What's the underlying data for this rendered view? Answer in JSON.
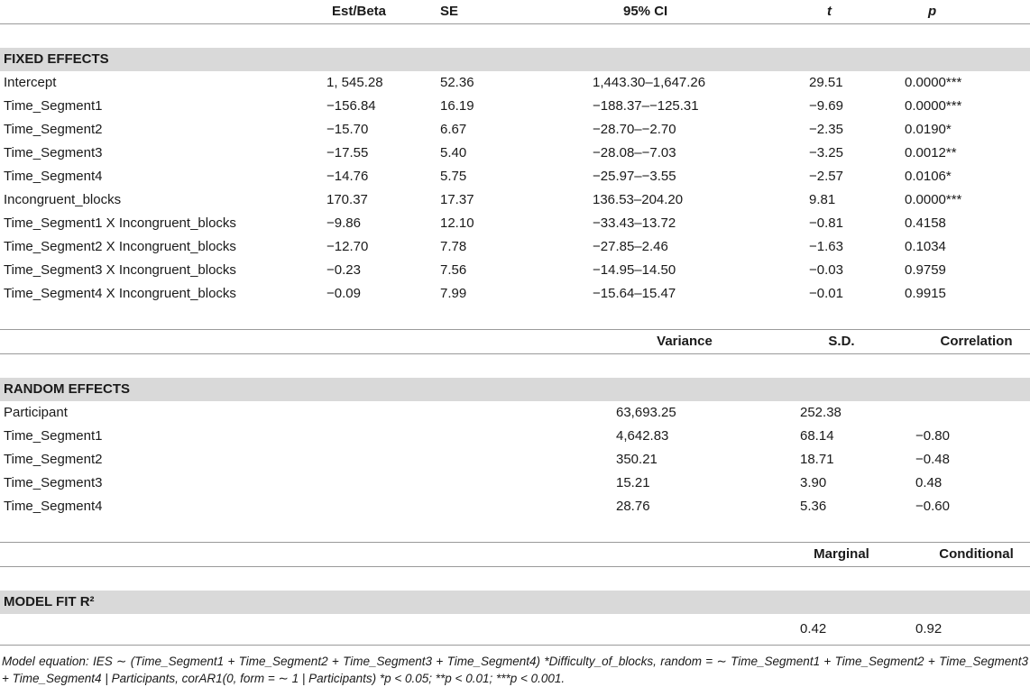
{
  "header": {
    "col0": "",
    "est": "Est/Beta",
    "se": "SE",
    "ci": "95% CI",
    "t": "t",
    "p": "p"
  },
  "fixed_title": "FIXED EFFECTS",
  "fixed": [
    {
      "term": "Intercept",
      "est": "1, 545.28",
      "se": "52.36",
      "ci": "1,443.30–1,647.26",
      "t": "29.51",
      "p": "0.0000***"
    },
    {
      "term": "Time_Segment1",
      "est": "−156.84",
      "se": "16.19",
      "ci": "−188.37–−125.31",
      "t": "−9.69",
      "p": "0.0000***"
    },
    {
      "term": "Time_Segment2",
      "est": "−15.70",
      "se": "6.67",
      "ci": "−28.70–−2.70",
      "t": "−2.35",
      "p": "0.0190*"
    },
    {
      "term": "Time_Segment3",
      "est": "−17.55",
      "se": "5.40",
      "ci": "−28.08–−7.03",
      "t": "−3.25",
      "p": "0.0012**"
    },
    {
      "term": "Time_Segment4",
      "est": "−14.76",
      "se": "5.75",
      "ci": "−25.97–−3.55",
      "t": "−2.57",
      "p": "0.0106*"
    },
    {
      "term": "Incongruent_blocks",
      "est": "170.37",
      "se": "17.37",
      "ci": "136.53–204.20",
      "t": "9.81",
      "p": "0.0000***"
    },
    {
      "term": "Time_Segment1 X Incongruent_blocks",
      "est": "−9.86",
      "se": "12.10",
      "ci": "−33.43–13.72",
      "t": "−0.81",
      "p": "0.4158"
    },
    {
      "term": "Time_Segment2 X Incongruent_blocks",
      "est": "−12.70",
      "se": "7.78",
      "ci": "−27.85–2.46",
      "t": "−1.63",
      "p": "0.1034"
    },
    {
      "term": "Time_Segment3 X Incongruent_blocks",
      "est": "−0.23",
      "se": "7.56",
      "ci": "−14.95–14.50",
      "t": "−0.03",
      "p": "0.9759"
    },
    {
      "term": "Time_Segment4 X Incongruent_blocks",
      "est": "−0.09",
      "se": "7.99",
      "ci": "−15.64–15.47",
      "t": "−0.01",
      "p": "0.9915"
    }
  ],
  "random_header": {
    "variance": "Variance",
    "sd": "S.D.",
    "corr": "Correlation"
  },
  "random_title": "RANDOM EFFECTS",
  "random": [
    {
      "term": "Participant",
      "variance": "63,693.25",
      "sd": "252.38",
      "corr": ""
    },
    {
      "term": "Time_Segment1",
      "variance": "4,642.83",
      "sd": "68.14",
      "corr": "−0.80"
    },
    {
      "term": "Time_Segment2",
      "variance": "350.21",
      "sd": "18.71",
      "corr": "−0.48"
    },
    {
      "term": "Time_Segment3",
      "variance": "15.21",
      "sd": "3.90",
      "corr": "0.48"
    },
    {
      "term": "Time_Segment4",
      "variance": "28.76",
      "sd": "5.36",
      "corr": "−0.60"
    }
  ],
  "fit_header": {
    "marginal": "Marginal",
    "conditional": "Conditional"
  },
  "fit_title": "MODEL FIT R²",
  "fit": {
    "marginal": "0.42",
    "conditional": "0.92"
  },
  "footnote": "Model equation: IES ∼ (Time_Segment1 + Time_Segment2 + Time_Segment3 + Time_Segment4) *Difficulty_of_blocks, random = ∼ Time_Segment1 + Time_Segment2 + Time_Segment3 + Time_Segment4 | Participants, corAR1(0, form = ∼ 1 | Participants) *p < 0.05; **p < 0.01; ***p < 0.001."
}
